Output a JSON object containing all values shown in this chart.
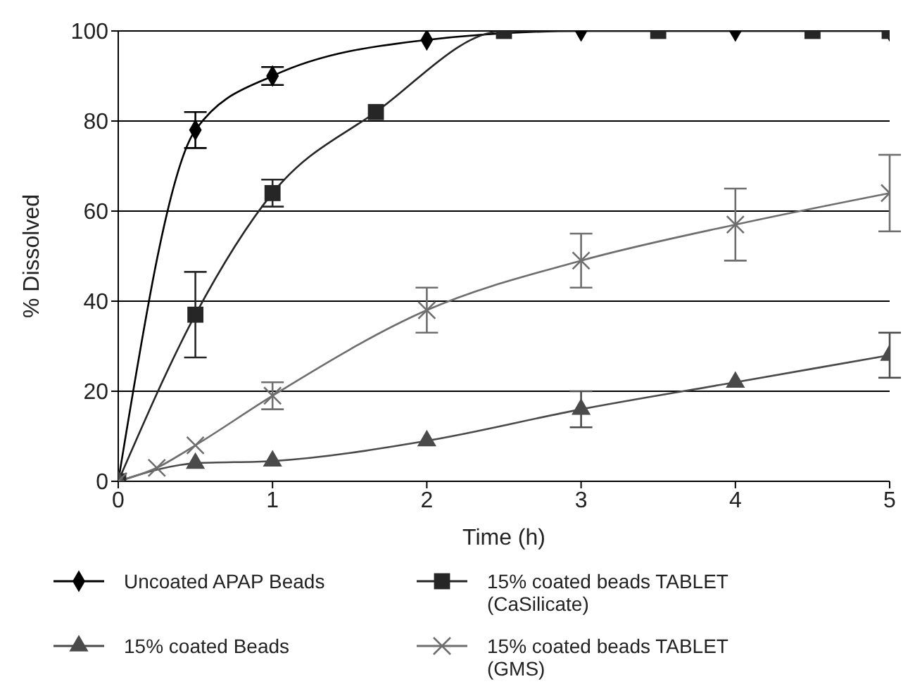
{
  "chart_data": {
    "type": "line",
    "xlabel": "Time (h)",
    "ylabel": "% Dissolved",
    "xlim": [
      0,
      5
    ],
    "xticks": [
      0,
      1,
      2,
      3,
      4,
      5
    ],
    "ylim": [
      0,
      100
    ],
    "yticks": [
      0,
      20,
      40,
      60,
      80,
      100
    ],
    "grid": "y",
    "legend": "bottom",
    "line_style": "solid",
    "series": [
      {
        "name": "Uncoated APAP Beads",
        "color": "#000000",
        "marker": "diamond",
        "x": [
          0,
          0.5,
          1,
          2,
          3,
          4,
          5
        ],
        "values": [
          0,
          78,
          90,
          98,
          100,
          100,
          100
        ],
        "errors": [
          null,
          4,
          2,
          null,
          null,
          null,
          null
        ]
      },
      {
        "name": "15% coated beads TABLET (CaSilicate)",
        "color": "#262626",
        "marker": "square",
        "x": [
          0,
          0.5,
          1,
          1.67,
          2.5,
          3.5,
          4.5,
          5
        ],
        "values": [
          0,
          37,
          64,
          82,
          100,
          100,
          100,
          100
        ],
        "errors": [
          null,
          9.5,
          3,
          null,
          null,
          null,
          null,
          null
        ]
      },
      {
        "name": "15% coated Beads",
        "color": "#4a4a4a",
        "marker": "triangle",
        "x": [
          0,
          0.5,
          1,
          2,
          3,
          4,
          5
        ],
        "values": [
          0,
          4,
          4.5,
          9,
          16,
          22,
          28
        ],
        "errors": [
          null,
          null,
          null,
          null,
          4,
          null,
          5
        ]
      },
      {
        "name": "15% coated beads TABLET (GMS)",
        "color": "#6e6e6e",
        "marker": "cross",
        "x": [
          0,
          0.25,
          0.5,
          1,
          2,
          3,
          4,
          5
        ],
        "values": [
          0,
          3,
          8,
          19,
          38,
          49,
          57,
          64
        ],
        "errors": [
          null,
          null,
          null,
          3,
          5,
          6,
          8,
          8.5
        ]
      }
    ]
  }
}
